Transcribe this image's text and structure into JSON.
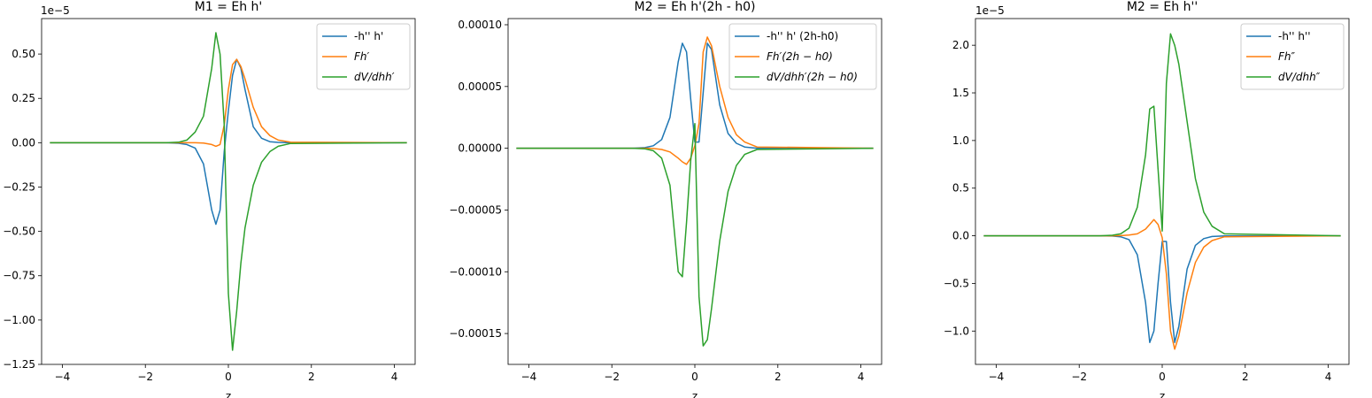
{
  "colors": {
    "blue": "#1f77b4",
    "orange": "#ff7f0e",
    "green": "#2ca02c"
  },
  "chart_data": [
    {
      "type": "line",
      "title": "M1 = Eh h'",
      "xlabel": "z",
      "ylabel": "",
      "offset_text": "1e−5",
      "xlim": [
        -4.5,
        4.5
      ],
      "ylim": [
        -1.25,
        0.7
      ],
      "xticks": [
        -4,
        -2,
        0,
        2,
        4
      ],
      "xtick_labels": [
        "−4",
        "−2",
        "0",
        "2",
        "4"
      ],
      "yticks": [
        -1.25,
        -1.0,
        -0.75,
        -0.5,
        -0.25,
        0.0,
        0.25,
        0.5
      ],
      "ytick_labels": [
        "−1.25",
        "−1.00",
        "−0.75",
        "−0.50",
        "−0.25",
        "0.00",
        "0.25",
        "0.50"
      ],
      "legend_position": "top-right",
      "x": [
        -4.3,
        -1.5,
        -1.2,
        -1.0,
        -0.8,
        -0.6,
        -0.4,
        -0.3,
        -0.2,
        -0.1,
        0.0,
        0.1,
        0.2,
        0.3,
        0.4,
        0.6,
        0.8,
        1.0,
        1.2,
        1.5,
        4.3
      ],
      "series": [
        {
          "name": "-h'' h'",
          "color_key": "blue",
          "values": [
            0,
            0,
            -0.003,
            -0.01,
            -0.03,
            -0.12,
            -0.38,
            -0.46,
            -0.38,
            -0.05,
            0.18,
            0.38,
            0.47,
            0.42,
            0.3,
            0.09,
            0.025,
            0.006,
            0.002,
            0,
            0
          ]
        },
        {
          "name": "Fh′",
          "color_key": "orange",
          "values": [
            0,
            0,
            0,
            0,
            0,
            -0.002,
            -0.01,
            -0.02,
            -0.01,
            0.1,
            0.3,
            0.44,
            0.47,
            0.43,
            0.36,
            0.2,
            0.09,
            0.04,
            0.015,
            0.003,
            0
          ]
        },
        {
          "name": "dV/dhh′",
          "color_key": "green",
          "values": [
            0,
            0,
            0.003,
            0.015,
            0.06,
            0.15,
            0.42,
            0.62,
            0.5,
            0.1,
            -0.85,
            -1.17,
            -0.95,
            -0.68,
            -0.48,
            -0.24,
            -0.11,
            -0.05,
            -0.02,
            -0.004,
            0
          ]
        }
      ]
    },
    {
      "type": "line",
      "title": "M2 = Eh h'(2h - h0)",
      "xlabel": "z",
      "ylabel": "",
      "offset_text": "",
      "xlim": [
        -4.5,
        4.5
      ],
      "ylim": [
        -0.000175,
        0.000105
      ],
      "xticks": [
        -4,
        -2,
        0,
        2,
        4
      ],
      "xtick_labels": [
        "−4",
        "−2",
        "0",
        "2",
        "4"
      ],
      "yticks": [
        -0.00015,
        -0.0001,
        -5e-05,
        0.0,
        5e-05,
        0.0001
      ],
      "ytick_labels": [
        "−0.00015",
        "−0.00010",
        "−0.00005",
        "0.00000",
        "0.00005",
        "0.00010"
      ],
      "legend_position": "top-right",
      "x": [
        -4.3,
        -1.5,
        -1.2,
        -1.0,
        -0.8,
        -0.6,
        -0.4,
        -0.3,
        -0.2,
        -0.1,
        0.0,
        0.1,
        0.2,
        0.3,
        0.4,
        0.6,
        0.8,
        1.0,
        1.2,
        1.5,
        4.3
      ],
      "series": [
        {
          "name": "-h'' h' (2h-h0)",
          "color_key": "blue",
          "values": [
            0,
            0,
            5e-07,
            2e-06,
            7e-06,
            2.5e-05,
            7e-05,
            8.5e-05,
            7.8e-05,
            4e-05,
            5e-06,
            5e-06,
            4.5e-05,
            8.5e-05,
            8e-05,
            3.5e-05,
            1.2e-05,
            4e-06,
            1e-06,
            0,
            0
          ]
        },
        {
          "name": "Fh′(2h − h0)",
          "color_key": "orange",
          "values": [
            0,
            0,
            0,
            -2e-07,
            -1e-06,
            -3e-06,
            -8e-06,
            -1.1e-05,
            -1.3e-05,
            -8e-06,
            2e-06,
            2e-05,
            7.8e-05,
            9e-05,
            8.3e-05,
            5e-05,
            2.5e-05,
            1.1e-05,
            5e-06,
            1e-06,
            0
          ]
        },
        {
          "name": "dV/dhh′(2h − h0)",
          "color_key": "green",
          "values": [
            0,
            0,
            -5e-07,
            -2e-06,
            -8e-06,
            -3e-05,
            -0.0001,
            -0.000104,
            -6e-05,
            -1e-05,
            2e-05,
            -0.00012,
            -0.00016,
            -0.000155,
            -0.00013,
            -7.5e-05,
            -3.5e-05,
            -1.4e-05,
            -5e-06,
            -1e-06,
            0
          ]
        }
      ]
    },
    {
      "type": "line",
      "title": "M2 = Eh h''",
      "xlabel": "z",
      "ylabel": "",
      "offset_text": "1e−5",
      "xlim": [
        -4.5,
        4.5
      ],
      "ylim": [
        -1.35,
        2.28
      ],
      "xticks": [
        -4,
        -2,
        0,
        2,
        4
      ],
      "xtick_labels": [
        "−4",
        "−2",
        "0",
        "2",
        "4"
      ],
      "yticks": [
        -1.0,
        -0.5,
        0.0,
        0.5,
        1.0,
        1.5,
        2.0
      ],
      "ytick_labels": [
        "−1.0",
        "−0.5",
        "0.0",
        "0.5",
        "1.0",
        "1.5",
        "2.0"
      ],
      "legend_position": "top-right",
      "x": [
        -4.3,
        -1.5,
        -1.2,
        -1.0,
        -0.8,
        -0.6,
        -0.4,
        -0.3,
        -0.2,
        -0.1,
        0.0,
        0.1,
        0.2,
        0.3,
        0.4,
        0.6,
        0.8,
        1.0,
        1.2,
        1.5,
        4.3
      ],
      "series": [
        {
          "name": "-h'' h''",
          "color_key": "blue",
          "values": [
            0,
            0,
            -0.003,
            -0.01,
            -0.04,
            -0.2,
            -0.7,
            -1.12,
            -1.0,
            -0.5,
            -0.06,
            -0.06,
            -0.7,
            -1.12,
            -0.95,
            -0.35,
            -0.1,
            -0.03,
            -0.008,
            -0.002,
            0
          ]
        },
        {
          "name": "Fh″",
          "color_key": "orange",
          "values": [
            0,
            0,
            0,
            0.002,
            0.007,
            0.02,
            0.07,
            0.12,
            0.17,
            0.12,
            -0.02,
            -0.4,
            -1.0,
            -1.19,
            -1.05,
            -0.6,
            -0.28,
            -0.12,
            -0.05,
            -0.01,
            0
          ]
        },
        {
          "name": "dV/dhh″",
          "color_key": "green",
          "values": [
            0,
            0,
            0.005,
            0.02,
            0.08,
            0.3,
            0.85,
            1.33,
            1.36,
            0.7,
            0.05,
            1.6,
            2.12,
            2.0,
            1.8,
            1.2,
            0.6,
            0.25,
            0.1,
            0.02,
            0
          ]
        }
      ]
    }
  ]
}
